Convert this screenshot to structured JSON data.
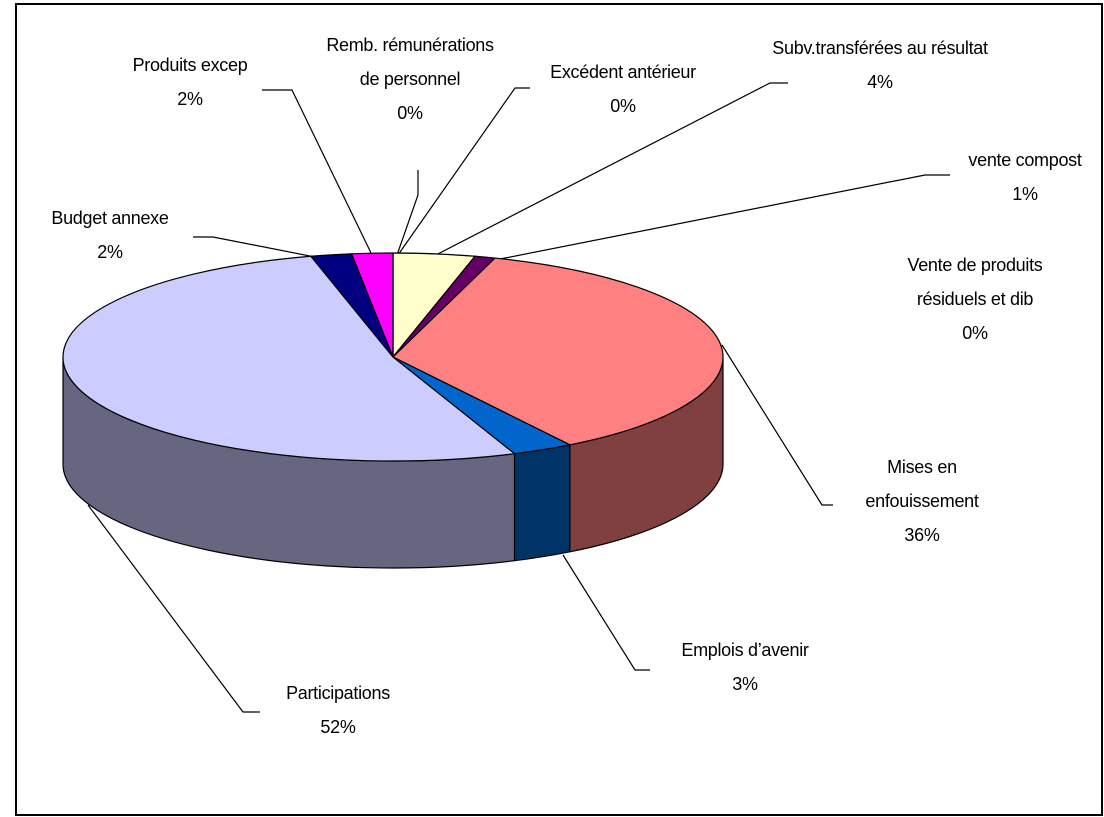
{
  "chart_data": {
    "type": "pie",
    "categories": [
      "Excédent antérieur",
      "Subv.transférées au résultat",
      "Vente de produits résiduels et dib",
      "vente compost",
      "Mises en enfouissement",
      "Emplois d’avenir",
      "Participations",
      "Budget annexe",
      "Produits excep",
      "Remb. rémunérations de personnel"
    ],
    "values": [
      0,
      4,
      0,
      1,
      36,
      3,
      52,
      2,
      2,
      0
    ],
    "value_labels": [
      "0%",
      "4%",
      "0%",
      "1%",
      "36%",
      "3%",
      "52%",
      "2%",
      "2%",
      "0%"
    ],
    "colors": [
      "#808080",
      "#FFFFCC",
      "#CCFFFF",
      "#660066",
      "#FF8080",
      "#0066CC",
      "#CCCCFF",
      "#000080",
      "#FF00FF",
      "#993366"
    ]
  }
}
